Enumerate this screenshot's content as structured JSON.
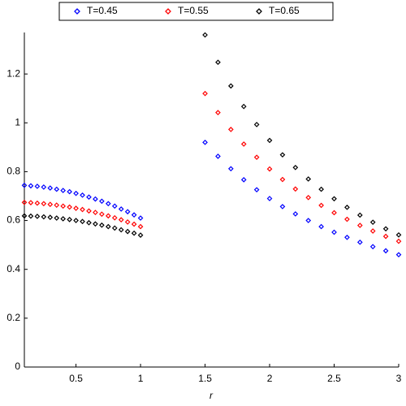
{
  "chart_data": {
    "type": "scatter",
    "x_label": "r",
    "x": [
      0.1,
      0.15,
      0.2,
      0.25,
      0.3,
      0.35,
      0.4,
      0.45,
      0.5,
      0.55,
      0.6,
      0.65,
      0.7,
      0.75,
      0.8,
      0.85,
      0.9,
      0.95,
      1.0,
      1.5,
      1.6,
      1.7,
      1.8,
      1.9,
      2.0,
      2.1,
      2.2,
      2.3,
      2.4,
      2.5,
      2.6,
      2.7,
      2.8,
      2.9,
      3.0
    ],
    "series": [
      {
        "name": "T=0.45",
        "color": "#0000ff",
        "values": [
          0.744,
          0.742,
          0.74,
          0.737,
          0.733,
          0.728,
          0.723,
          0.718,
          0.711,
          0.704,
          0.696,
          0.688,
          0.679,
          0.669,
          0.659,
          0.647,
          0.636,
          0.623,
          0.61,
          0.92,
          0.863,
          0.812,
          0.767,
          0.726,
          0.69,
          0.657,
          0.627,
          0.6,
          0.575,
          0.552,
          0.531,
          0.511,
          0.493,
          0.476,
          0.46
        ]
      },
      {
        "name": "T=0.55",
        "color": "#ff0000",
        "values": [
          0.674,
          0.673,
          0.671,
          0.669,
          0.666,
          0.663,
          0.659,
          0.655,
          0.65,
          0.645,
          0.639,
          0.633,
          0.626,
          0.619,
          0.611,
          0.603,
          0.594,
          0.585,
          0.575,
          1.12,
          1.042,
          0.973,
          0.913,
          0.859,
          0.811,
          0.768,
          0.729,
          0.694,
          0.662,
          0.632,
          0.605,
          0.58,
          0.557,
          0.535,
          0.515
        ]
      },
      {
        "name": "T=0.65",
        "color": "#000000",
        "values": [
          0.619,
          0.618,
          0.617,
          0.615,
          0.613,
          0.61,
          0.607,
          0.604,
          0.6,
          0.596,
          0.591,
          0.586,
          0.581,
          0.575,
          0.569,
          0.562,
          0.555,
          0.548,
          0.54,
          1.36,
          1.248,
          1.151,
          1.067,
          0.993,
          0.928,
          0.869,
          0.817,
          0.77,
          0.728,
          0.689,
          0.654,
          0.622,
          0.593,
          0.566,
          0.541
        ]
      }
    ],
    "xlim": [
      0.1,
      3
    ],
    "ylim": [
      0,
      1.37
    ],
    "xticks": [
      0.5,
      1,
      1.5,
      2,
      2.5,
      3
    ],
    "yticks": [
      0,
      0.2,
      0.4,
      0.6,
      0.8,
      1,
      1.2
    ],
    "legend": "top"
  }
}
